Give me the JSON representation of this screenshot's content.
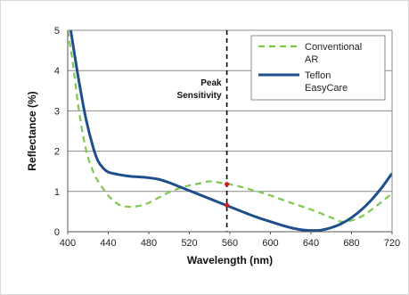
{
  "chart_data": {
    "type": "line",
    "title": "",
    "xlabel": "Wavelength (nm)",
    "ylabel": "Reflectance (%)",
    "xlim": [
      400,
      720
    ],
    "ylim": [
      0,
      5
    ],
    "x_ticks": [
      "400",
      "440",
      "480",
      "520",
      "560",
      "600",
      "640",
      "680",
      "720"
    ],
    "y_ticks": [
      "0",
      "1",
      "2",
      "3",
      "4",
      "5"
    ],
    "grid": "horizontal",
    "legend_position": "top-right",
    "series": [
      {
        "name": "Conventional AR",
        "legend_lines": [
          "Conventional",
          "AR"
        ],
        "style": "dashed",
        "color": "#7ec850",
        "points": [
          [
            400,
            5.0
          ],
          [
            405,
            4.2
          ],
          [
            410,
            3.2
          ],
          [
            415,
            2.4
          ],
          [
            420,
            1.85
          ],
          [
            425,
            1.5
          ],
          [
            430,
            1.25
          ],
          [
            440,
            0.9
          ],
          [
            450,
            0.68
          ],
          [
            460,
            0.62
          ],
          [
            470,
            0.64
          ],
          [
            480,
            0.72
          ],
          [
            490,
            0.85
          ],
          [
            500,
            0.98
          ],
          [
            510,
            1.08
          ],
          [
            520,
            1.15
          ],
          [
            530,
            1.2
          ],
          [
            540,
            1.25
          ],
          [
            550,
            1.22
          ],
          [
            560,
            1.18
          ],
          [
            570,
            1.12
          ],
          [
            580,
            1.05
          ],
          [
            590,
            0.98
          ],
          [
            600,
            0.9
          ],
          [
            620,
            0.72
          ],
          [
            640,
            0.55
          ],
          [
            660,
            0.35
          ],
          [
            670,
            0.25
          ],
          [
            680,
            0.28
          ],
          [
            690,
            0.38
          ],
          [
            700,
            0.55
          ],
          [
            710,
            0.75
          ],
          [
            720,
            0.95
          ]
        ]
      },
      {
        "name": "Teflon EasyCare",
        "legend_lines": [
          "Teflon",
          "EasyCare"
        ],
        "style": "solid",
        "color": "#1f4e8c",
        "points": [
          [
            403,
            5.0
          ],
          [
            408,
            4.2
          ],
          [
            412,
            3.6
          ],
          [
            418,
            2.8
          ],
          [
            425,
            2.1
          ],
          [
            430,
            1.75
          ],
          [
            435,
            1.58
          ],
          [
            440,
            1.48
          ],
          [
            450,
            1.42
          ],
          [
            460,
            1.38
          ],
          [
            470,
            1.36
          ],
          [
            480,
            1.34
          ],
          [
            490,
            1.3
          ],
          [
            500,
            1.22
          ],
          [
            510,
            1.12
          ],
          [
            520,
            1.02
          ],
          [
            530,
            0.92
          ],
          [
            540,
            0.82
          ],
          [
            550,
            0.72
          ],
          [
            560,
            0.62
          ],
          [
            570,
            0.52
          ],
          [
            580,
            0.42
          ],
          [
            590,
            0.33
          ],
          [
            600,
            0.25
          ],
          [
            610,
            0.17
          ],
          [
            620,
            0.1
          ],
          [
            630,
            0.05
          ],
          [
            640,
            0.03
          ],
          [
            650,
            0.04
          ],
          [
            660,
            0.1
          ],
          [
            670,
            0.2
          ],
          [
            680,
            0.35
          ],
          [
            690,
            0.55
          ],
          [
            700,
            0.8
          ],
          [
            710,
            1.1
          ],
          [
            720,
            1.45
          ]
        ]
      }
    ],
    "annotations": [
      {
        "text_lines": [
          "Peak",
          "Sensitivity"
        ],
        "x": 557,
        "type": "vertical-dashed-line",
        "color": "#000000"
      }
    ],
    "markers": [
      {
        "x": 557,
        "y": 1.18,
        "color": "#cc2222"
      },
      {
        "x": 557,
        "y": 0.66,
        "color": "#cc2222"
      }
    ]
  }
}
